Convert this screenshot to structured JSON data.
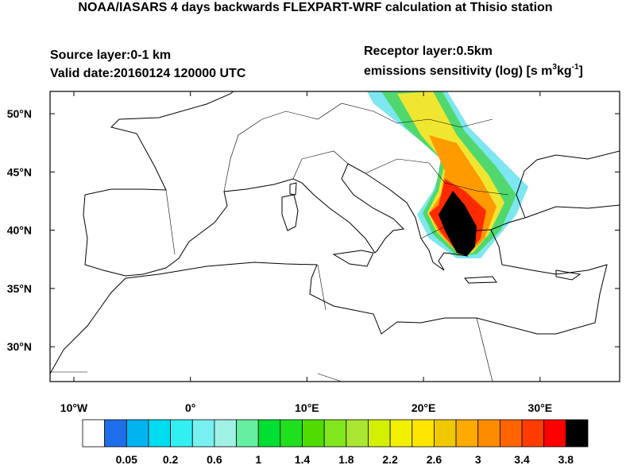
{
  "header": {
    "title": "NOAA/IASARS 4 days backwards FLEXPART-WRF calculation at Thisio station",
    "source_layer": "Source layer:0-1 km",
    "valid_date": "Valid date:20160124 120000 UTC",
    "receptor_layer": "Receptor layer:0.5km",
    "units": {
      "text": "emissions sensitivity (log) [s m",
      "sup1": "3",
      "mid": "kg",
      "sup2": "-1",
      "end": "]"
    }
  },
  "map": {
    "lat_labels": [
      "50°N",
      "45°N",
      "40°N",
      "35°N",
      "30°N"
    ],
    "lon_labels": [
      "10°W",
      "0°",
      "10°E",
      "20°E",
      "30°E"
    ]
  },
  "colorbar": {
    "colors": [
      "#ffffff",
      "#1e6eeb",
      "#00b4f0",
      "#00dcf0",
      "#32f0f0",
      "#78f0f0",
      "#a0f0e6",
      "#64f0a0",
      "#00e032",
      "#1ee01e",
      "#50dc00",
      "#82e61e",
      "#aae632",
      "#d2f000",
      "#f0f000",
      "#ffe600",
      "#f0c800",
      "#ffaa00",
      "#ff8c00",
      "#ff6400",
      "#ff3c00",
      "#ff0000",
      "#000000"
    ],
    "labels": [
      0.05,
      0.2,
      0.6,
      1,
      1.4,
      1.8,
      2.2,
      2.6,
      3,
      3.4,
      3.8
    ]
  }
}
